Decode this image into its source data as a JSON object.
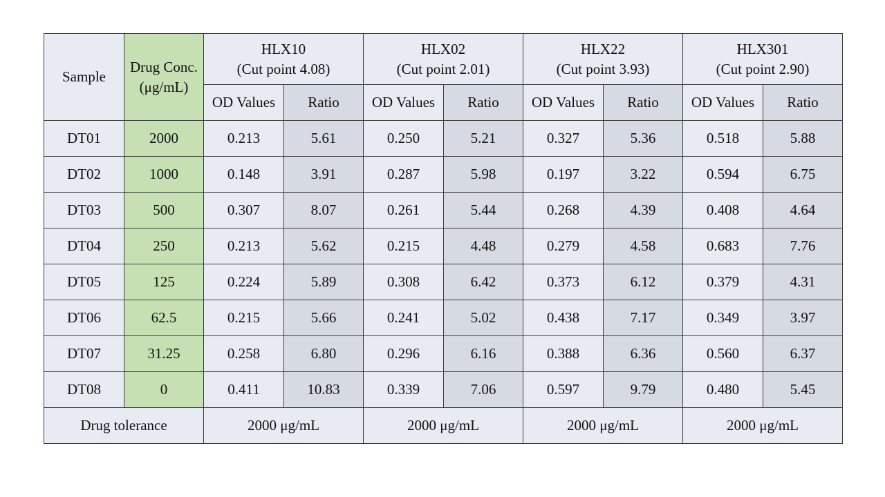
{
  "headers": {
    "sample": "Sample",
    "drug_conc_line1": "Drug Conc.",
    "drug_conc_line2": "(μg/mL)",
    "od_label": "OD Values",
    "ratio_label": "Ratio"
  },
  "groups": [
    {
      "name": "HLX10",
      "cut": "(Cut point 4.08)",
      "tolerance": "2000 μg/mL"
    },
    {
      "name": "HLX02",
      "cut": "(Cut point 2.01)",
      "tolerance": "2000 μg/mL"
    },
    {
      "name": "HLX22",
      "cut": "(Cut point 3.93)",
      "tolerance": "2000 μg/mL"
    },
    {
      "name": "HLX301",
      "cut": "(Cut point 2.90)",
      "tolerance": "2000 μg/mL"
    }
  ],
  "rows": [
    {
      "sample": "DT01",
      "conc": "2000",
      "cells": [
        "0.213",
        "5.61",
        "0.250",
        "5.21",
        "0.327",
        "5.36",
        "0.518",
        "5.88"
      ]
    },
    {
      "sample": "DT02",
      "conc": "1000",
      "cells": [
        "0.148",
        "3.91",
        "0.287",
        "5.98",
        "0.197",
        "3.22",
        "0.594",
        "6.75"
      ]
    },
    {
      "sample": "DT03",
      "conc": "500",
      "cells": [
        "0.307",
        "8.07",
        "0.261",
        "5.44",
        "0.268",
        "4.39",
        "0.408",
        "4.64"
      ]
    },
    {
      "sample": "DT04",
      "conc": "250",
      "cells": [
        "0.213",
        "5.62",
        "0.215",
        "4.48",
        "0.279",
        "4.58",
        "0.683",
        "7.76"
      ]
    },
    {
      "sample": "DT05",
      "conc": "125",
      "cells": [
        "0.224",
        "5.89",
        "0.308",
        "6.42",
        "0.373",
        "6.12",
        "0.379",
        "4.31"
      ]
    },
    {
      "sample": "DT06",
      "conc": "62.5",
      "cells": [
        "0.215",
        "5.66",
        "0.241",
        "5.02",
        "0.438",
        "7.17",
        "0.349",
        "3.97"
      ]
    },
    {
      "sample": "DT07",
      "conc": "31.25",
      "cells": [
        "0.258",
        "6.80",
        "0.296",
        "6.16",
        "0.388",
        "6.36",
        "0.560",
        "6.37"
      ]
    },
    {
      "sample": "DT08",
      "conc": "0",
      "cells": [
        "0.411",
        "10.83",
        "0.339",
        "7.06",
        "0.597",
        "9.79",
        "0.480",
        "5.45"
      ]
    }
  ],
  "footer": {
    "label": "Drug tolerance"
  },
  "colors": {
    "cell_bg": "#e9ebf3",
    "drug_bg": "#c6e0b4",
    "ratio_bg": "#d5dae3",
    "border": "#3a3a3a"
  }
}
